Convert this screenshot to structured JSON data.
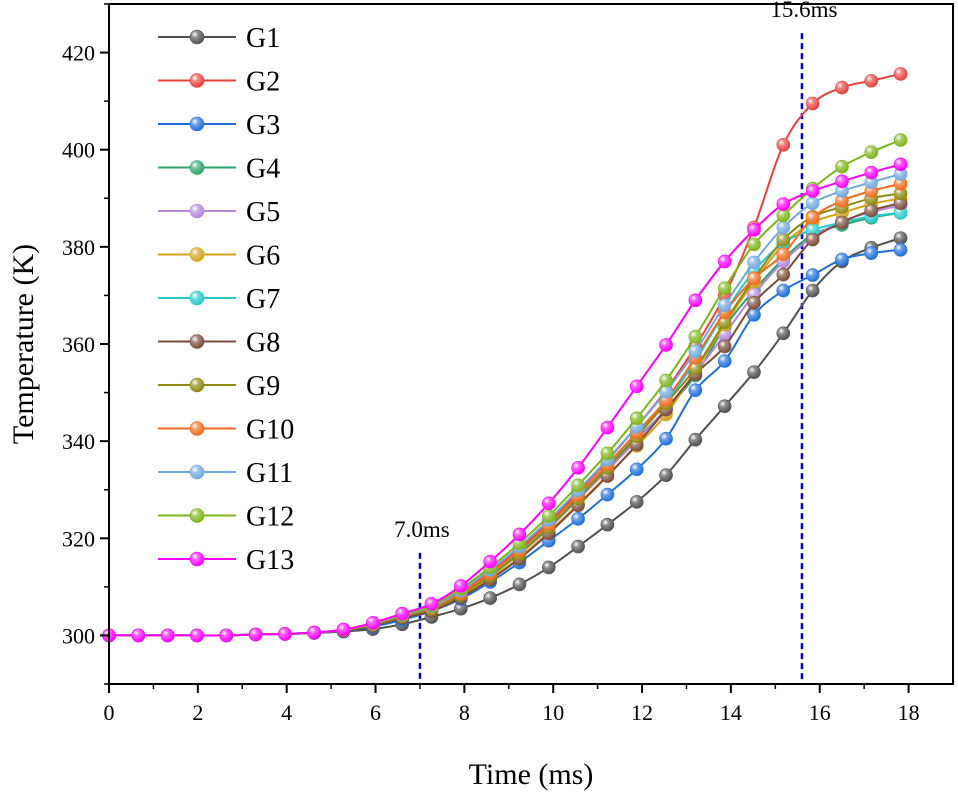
{
  "chart_data": {
    "type": "line",
    "title": "",
    "xlabel": "Time (ms)",
    "ylabel": "Temperature (K)",
    "xlim": [
      0,
      19
    ],
    "ylim": [
      290,
      430
    ],
    "xticks": [
      0,
      2,
      4,
      6,
      8,
      10,
      12,
      14,
      16,
      18
    ],
    "yticks": [
      300,
      320,
      340,
      360,
      380,
      400,
      420
    ],
    "grid": false,
    "legend_position": "top-left",
    "x": [
      0,
      0.66,
      1.32,
      1.98,
      2.64,
      3.3,
      3.96,
      4.62,
      5.28,
      5.94,
      6.6,
      7.26,
      7.92,
      8.58,
      9.24,
      9.9,
      10.56,
      11.22,
      11.88,
      12.54,
      13.2,
      13.86,
      14.52,
      15.18,
      15.84,
      16.5,
      17.16,
      17.82
    ],
    "series": [
      {
        "name": "G1",
        "color": "#505050",
        "values": [
          300,
          300,
          300,
          300,
          300,
          300.2,
          300.3,
          300.5,
          300.8,
          301.3,
          302.3,
          303.8,
          305.5,
          307.7,
          310.5,
          314.0,
          318.3,
          322.8,
          327.5,
          333.0,
          340.3,
          347.2,
          354.2,
          362.2,
          371.0,
          377.0,
          379.8,
          381.8
        ]
      },
      {
        "name": "G2",
        "color": "#E8413D",
        "values": [
          300,
          300,
          300,
          300,
          300,
          300.2,
          300.3,
          300.6,
          301.2,
          302.4,
          304.1,
          306.0,
          309.0,
          313.0,
          318.0,
          323.2,
          329.5,
          336.0,
          343.0,
          350.5,
          359.5,
          370.0,
          384.0,
          401.0,
          409.5,
          412.8,
          414.2,
          415.6
        ]
      },
      {
        "name": "G3",
        "color": "#1E6FD9",
        "values": [
          300,
          300,
          300,
          300,
          300,
          300.2,
          300.3,
          300.5,
          300.9,
          301.8,
          303.2,
          305.0,
          307.5,
          311.0,
          315.0,
          319.5,
          324.0,
          329.0,
          334.2,
          340.5,
          350.5,
          356.5,
          366.0,
          371.0,
          374.2,
          377.4,
          378.7,
          379.4
        ]
      },
      {
        "name": "G4",
        "color": "#2EA36E",
        "values": [
          300,
          300,
          300,
          300,
          300,
          300.2,
          300.3,
          300.6,
          301.1,
          302.2,
          304.0,
          305.5,
          308.5,
          312.5,
          317.0,
          322.3,
          328.3,
          334.2,
          340.5,
          346.5,
          353.5,
          363.5,
          371.0,
          377.5,
          382.5,
          384.5,
          386.0,
          387.0
        ]
      },
      {
        "name": "G5",
        "color": "#B485DB",
        "values": [
          300,
          300,
          300,
          300,
          300,
          300.2,
          300.3,
          300.6,
          301.1,
          302.2,
          304.0,
          305.5,
          308.5,
          312.3,
          316.8,
          322.0,
          328.0,
          334.0,
          340.2,
          346.7,
          354.0,
          362.0,
          370.2,
          377.0,
          382.0,
          385.2,
          387.2,
          388.5
        ]
      },
      {
        "name": "G6",
        "color": "#D4A017",
        "values": [
          300,
          300,
          300,
          300,
          300,
          300.2,
          300.3,
          300.6,
          301.1,
          302.2,
          303.9,
          305.3,
          308.0,
          311.8,
          316.0,
          321.3,
          327.0,
          333.0,
          339.0,
          345.5,
          354.5,
          364.0,
          372.8,
          380.5,
          385.0,
          387.0,
          388.8,
          390.0
        ]
      },
      {
        "name": "G7",
        "color": "#26C9C9",
        "values": [
          300,
          300,
          300,
          300,
          300,
          300.2,
          300.3,
          300.6,
          301.1,
          302.2,
          304.0,
          305.6,
          308.6,
          312.6,
          317.2,
          322.6,
          328.6,
          334.7,
          341.2,
          348.0,
          356.5,
          366.5,
          375.0,
          380.8,
          383.5,
          385.0,
          386.3,
          387.0
        ]
      },
      {
        "name": "G8",
        "color": "#7B4B3A",
        "values": [
          300,
          300,
          300,
          300,
          300,
          300.2,
          300.3,
          300.5,
          301.0,
          302.0,
          303.6,
          305.0,
          307.8,
          311.5,
          315.8,
          321.0,
          326.8,
          332.8,
          339.3,
          346.5,
          353.8,
          359.5,
          368.5,
          374.3,
          381.5,
          385.0,
          387.5,
          389.0
        ]
      },
      {
        "name": "G9",
        "color": "#8C8A12",
        "values": [
          300,
          300,
          300,
          300,
          300,
          300.2,
          300.3,
          300.6,
          301.1,
          302.2,
          303.9,
          305.4,
          308.3,
          312.3,
          316.8,
          322.2,
          328.2,
          334.5,
          341.0,
          347.8,
          355.0,
          364.5,
          373.5,
          381.5,
          386.2,
          388.2,
          390.0,
          391.0
        ]
      },
      {
        "name": "G10",
        "color": "#F26A1B",
        "values": [
          300,
          300,
          300,
          300,
          300,
          300.2,
          300.3,
          300.6,
          301.1,
          302.3,
          304.1,
          305.7,
          308.7,
          312.8,
          317.5,
          322.9,
          328.9,
          335.2,
          341.8,
          348.5,
          357.2,
          366.5,
          373.5,
          378.5,
          386.0,
          389.5,
          391.5,
          393.0
        ]
      },
      {
        "name": "G11",
        "color": "#6FA8DC",
        "values": [
          300,
          300,
          300,
          300,
          300,
          300.2,
          300.3,
          300.6,
          301.2,
          302.4,
          304.2,
          305.9,
          309.2,
          313.5,
          318.3,
          323.8,
          329.9,
          336.2,
          343.0,
          350.2,
          358.5,
          368.0,
          376.8,
          384.0,
          389.0,
          391.5,
          393.3,
          395.0
        ]
      },
      {
        "name": "G12",
        "color": "#7CB518",
        "values": [
          300,
          300,
          300,
          300,
          300,
          300.2,
          300.3,
          300.6,
          301.2,
          302.5,
          304.3,
          306.1,
          309.6,
          314.0,
          319.0,
          324.6,
          330.9,
          337.5,
          344.7,
          352.5,
          361.5,
          371.5,
          380.5,
          386.5,
          392.0,
          396.5,
          399.5,
          402.0
        ]
      },
      {
        "name": "G13",
        "color": "#FF00FF",
        "values": [
          300,
          300,
          300,
          300,
          300,
          300.2,
          300.3,
          300.6,
          301.2,
          302.6,
          304.5,
          306.5,
          310.2,
          315.2,
          320.8,
          327.2,
          334.5,
          342.8,
          351.3,
          359.8,
          369.0,
          377.0,
          383.5,
          388.8,
          391.5,
          393.5,
          395.3,
          397.0
        ]
      }
    ],
    "annotations": [
      {
        "x": 7.0,
        "label": "7.0ms",
        "style": "dashed-vertical",
        "color": "#0000DD"
      },
      {
        "x": 15.6,
        "label": "15.6ms",
        "style": "dashed-vertical",
        "color": "#0000DD"
      }
    ]
  }
}
